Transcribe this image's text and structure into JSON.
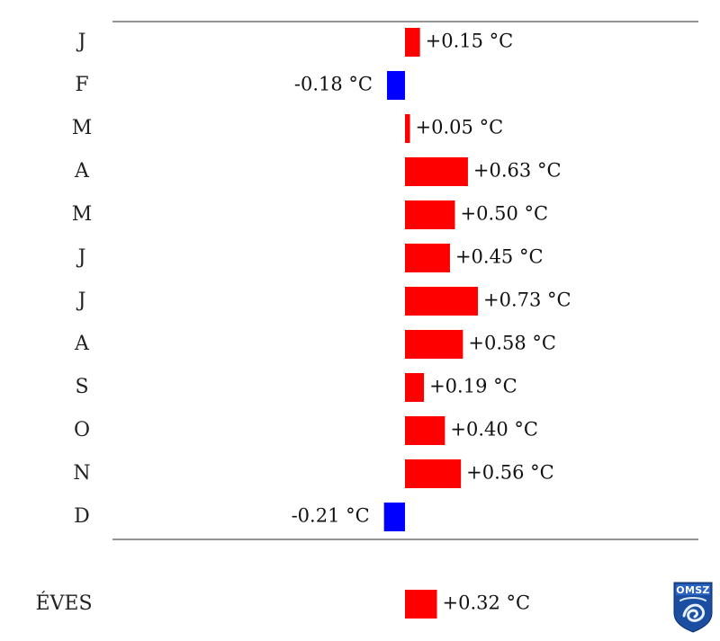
{
  "chart_data": {
    "type": "bar",
    "orientation": "horizontal",
    "categories": [
      "J",
      "F",
      "M",
      "A",
      "M",
      "J",
      "J",
      "A",
      "S",
      "O",
      "N",
      "D"
    ],
    "values": [
      0.15,
      -0.18,
      0.05,
      0.63,
      0.5,
      0.45,
      0.73,
      0.58,
      0.19,
      0.4,
      0.56,
      -0.21
    ],
    "value_labels": [
      "+0.15 °C",
      "-0.18 °C",
      "+0.05 °C",
      "+0.63 °C",
      "+0.50 °C",
      "+0.45 °C",
      "+0.73 °C",
      "+0.58 °C",
      "+0.19 °C",
      "+0.40 °C",
      "+0.56 °C",
      "-0.21 °C"
    ],
    "annual": {
      "label": "ÉVES",
      "value": 0.32,
      "value_label": "+0.32 °C"
    },
    "colors": {
      "positive": "#ff0000",
      "negative": "#0000ff"
    },
    "grid": false
  },
  "logo": {
    "text": "OMSZ"
  }
}
